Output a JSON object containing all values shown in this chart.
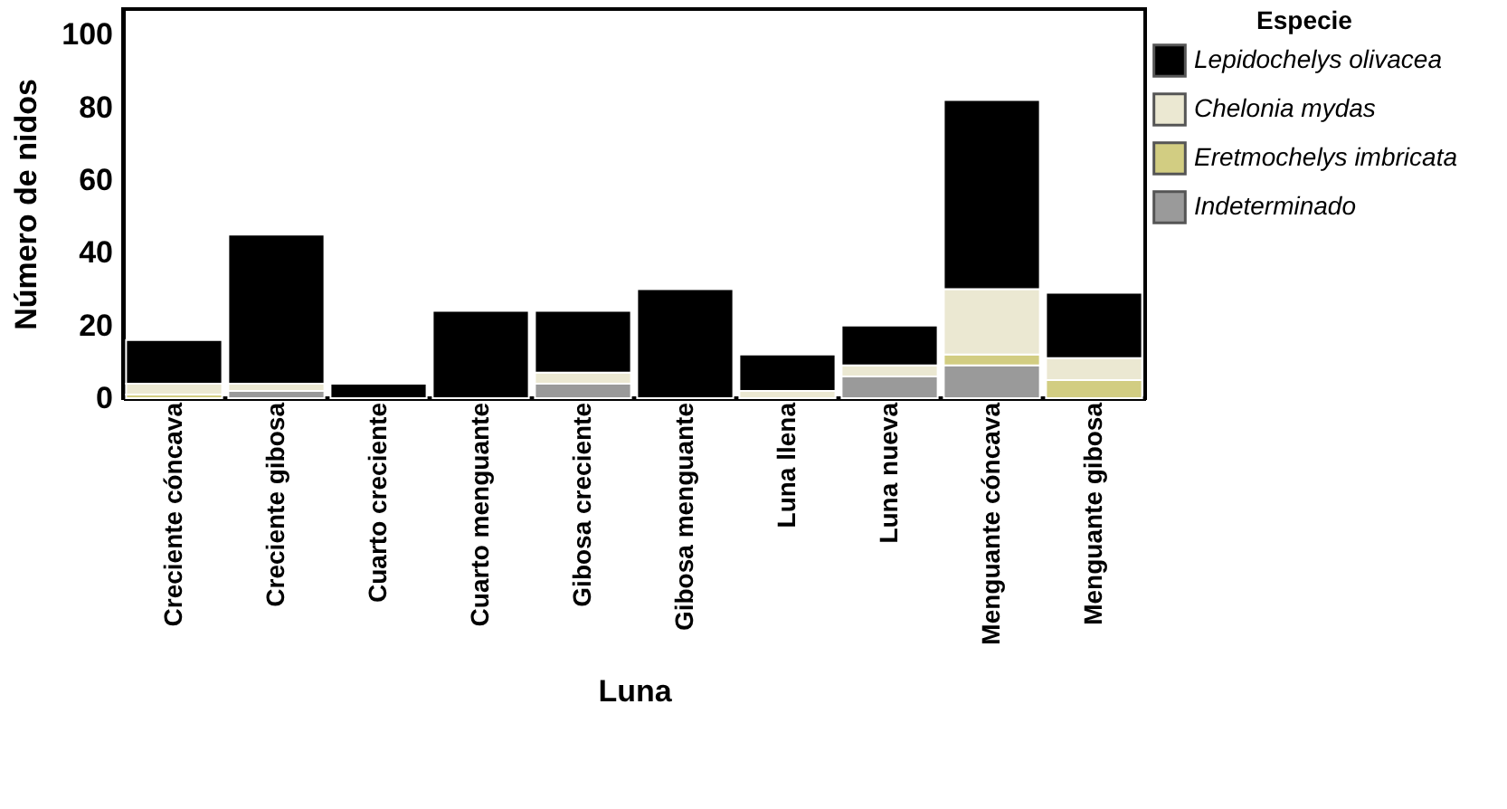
{
  "chart_data": {
    "type": "bar",
    "stacked": true,
    "xlabel": "Luna",
    "ylabel": "Número de nidos",
    "legend_title": "Especie",
    "legend": "top right",
    "categories": [
      "Creciente cóncava",
      "Creciente gibosa",
      "Cuarto creciente",
      "Cuarto menguante",
      "Gibosa creciente",
      "Gibosa menguante",
      "Luna llena",
      "Luna nueva",
      "Menguante cóncava",
      "Menguante gibosa"
    ],
    "series": [
      {
        "name": "Indeterminado",
        "color": "#9a9a9a",
        "values": [
          0,
          2,
          0,
          0,
          4,
          0,
          0,
          6,
          9,
          0
        ]
      },
      {
        "name": "Eretmochelys imbricata",
        "color": "#d2cd82",
        "values": [
          1,
          0,
          0,
          0,
          0,
          0,
          0,
          0,
          3,
          5
        ]
      },
      {
        "name": "Chelonia mydas",
        "color": "#ebe8d2",
        "values": [
          3,
          2,
          0,
          0,
          3,
          0,
          2,
          3,
          18,
          6
        ]
      },
      {
        "name": "Lepidochelys olivacea",
        "color": "#000000",
        "values": [
          12,
          41,
          4,
          24,
          17,
          30,
          10,
          11,
          52,
          18
        ]
      }
    ],
    "ylim": [
      0,
      107
    ],
    "yticks": [
      0,
      20,
      40,
      60,
      80,
      100
    ],
    "grid": false
  }
}
